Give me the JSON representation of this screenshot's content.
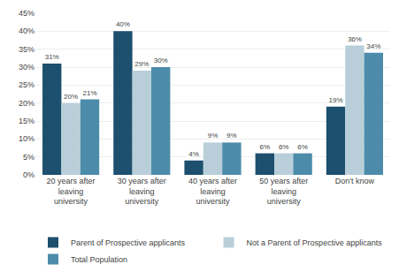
{
  "chart_data": {
    "type": "bar",
    "categories": [
      "20 years after\nleaving\nuniversity",
      "30 years after\nleaving\nuniversity",
      "40 years after\nleaving\nuniversity",
      "50 years after\nleaving\nuniversity",
      "Don't know"
    ],
    "series": [
      {
        "name": "Parent of Prospective applicants",
        "color": "#1d4f6e",
        "values": [
          31,
          40,
          4,
          6,
          19
        ],
        "value_labels": [
          "31%",
          "40%",
          "4%",
          "6%",
          "19%"
        ]
      },
      {
        "name": "Not a Parent of Prospective applicants",
        "color": "#b8cfd9",
        "values": [
          20,
          29,
          9,
          6,
          36
        ],
        "value_labels": [
          "20%",
          "29%",
          "9%",
          "6%",
          "36%"
        ]
      },
      {
        "name": "Total Population",
        "color": "#4c8caa",
        "values": [
          21,
          30,
          9,
          6,
          34
        ],
        "value_labels": [
          "21%",
          "30%",
          "9%",
          "6%",
          "34%"
        ]
      }
    ],
    "ylim": [
      0,
      45
    ],
    "yticks": [
      {
        "value": 0,
        "label": "0%"
      },
      {
        "value": 5,
        "label": "5%"
      },
      {
        "value": 10,
        "label": "10%"
      },
      {
        "value": 15,
        "label": "15%"
      },
      {
        "value": 20,
        "label": "20%"
      },
      {
        "value": 25,
        "label": "25%"
      },
      {
        "value": 30,
        "label": "30%"
      },
      {
        "value": 35,
        "label": "35%"
      },
      {
        "value": 40,
        "label": "40%"
      },
      {
        "value": 45,
        "label": "45%"
      }
    ],
    "grid": true,
    "legend": "bottom",
    "data_labels": true
  }
}
